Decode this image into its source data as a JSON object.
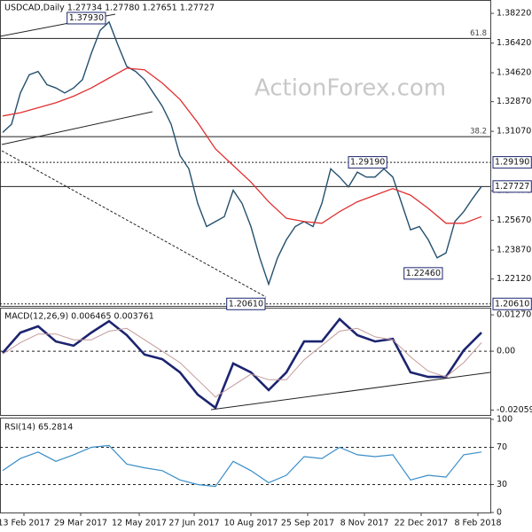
{
  "chart_data": [
    {
      "type": "line",
      "title": "USDCAD,Daily  1.27734 1.27780 1.27651 1.27727",
      "watermark": "ActionForex.com",
      "xlim": [
        0,
        275
      ],
      "ylim": [
        1.2049,
        1.3903
      ],
      "yticks": [
        {
          "value": 1.3822,
          "label": "1.38220"
        },
        {
          "value": 1.3642,
          "label": "1.36420"
        },
        {
          "value": 1.3462,
          "label": "1.34620"
        },
        {
          "value": 1.3287,
          "label": "1.32870"
        },
        {
          "value": 1.3107,
          "label": "1.31070"
        },
        {
          "value": 1.2747,
          "label": "1.27470"
        },
        {
          "value": 1.2567,
          "label": "1.25670"
        },
        {
          "value": 1.2387,
          "label": "1.23870"
        },
        {
          "value": 1.2212,
          "label": "1.22120"
        }
      ],
      "series": [
        {
          "name": "Price",
          "color": "#24506e",
          "width": 1.4,
          "x": [
            0,
            5,
            10,
            15,
            20,
            25,
            30,
            35,
            40,
            45,
            50,
            55,
            60,
            65,
            70,
            75,
            80,
            85,
            90,
            95,
            100,
            105,
            110,
            115,
            120,
            125,
            130,
            135,
            140,
            145,
            150,
            155,
            160,
            165,
            170,
            175,
            180,
            185,
            190,
            195,
            200,
            205,
            210,
            215,
            220,
            225,
            230,
            235,
            240,
            245,
            250,
            255,
            260,
            265,
            270
          ],
          "values": [
            1.31,
            1.315,
            1.334,
            1.345,
            1.347,
            1.339,
            1.337,
            1.334,
            1.337,
            1.342,
            1.358,
            1.372,
            1.377,
            1.363,
            1.35,
            1.347,
            1.342,
            1.334,
            1.326,
            1.315,
            1.296,
            1.288,
            1.267,
            1.253,
            1.256,
            1.259,
            1.275,
            1.267,
            1.253,
            1.234,
            1.218,
            1.234,
            1.245,
            1.253,
            1.256,
            1.253,
            1.267,
            1.288,
            1.283,
            1.277,
            1.286,
            1.283,
            1.283,
            1.288,
            1.283,
            1.267,
            1.251,
            1.253,
            1.245,
            1.234,
            1.237,
            1.256,
            1.262,
            1.27,
            1.2773
          ]
        },
        {
          "name": "MA",
          "color": "#e03030",
          "width": 1.3,
          "x": [
            0,
            10,
            20,
            30,
            40,
            50,
            60,
            70,
            80,
            90,
            100,
            110,
            120,
            130,
            140,
            150,
            160,
            170,
            180,
            190,
            200,
            210,
            220,
            230,
            240,
            250,
            260,
            270
          ],
          "values": [
            1.32,
            1.322,
            1.325,
            1.328,
            1.332,
            1.337,
            1.343,
            1.349,
            1.348,
            1.34,
            1.33,
            1.316,
            1.3,
            1.29,
            1.28,
            1.268,
            1.258,
            1.256,
            1.255,
            1.262,
            1.268,
            1.272,
            1.276,
            1.272,
            1.264,
            1.255,
            1.255,
            1.259
          ]
        }
      ],
      "levels": [
        {
          "value": 1.367,
          "name": "61.8",
          "line": "solid"
        },
        {
          "value": 1.3075,
          "name": "38.2",
          "line": "solid"
        },
        {
          "value": 1.2919,
          "label": "1.29190",
          "line": "dotted"
        },
        {
          "value": 1.27727,
          "label": "1.27727",
          "line": "solid"
        },
        {
          "value": 1.2061,
          "label": "1.20610",
          "line": "dotted"
        }
      ],
      "callouts": [
        {
          "label": "1.37930",
          "value": 1.3793,
          "x": 57,
          "anchor": "end"
        },
        {
          "label": "1.29190",
          "value": 1.2919,
          "x": 196,
          "anchor": "start"
        },
        {
          "label": "1.22460",
          "value": 1.2246,
          "x": 247,
          "anchor": "end"
        },
        {
          "label": "1.20610",
          "value": 1.2061,
          "x": 147,
          "anchor": "end"
        }
      ]
    },
    {
      "type": "line",
      "title": "MACD(12,26,9) 0.006465 0.003761",
      "xlim": [
        0,
        275
      ],
      "ylim": [
        -0.0223,
        0.0149
      ],
      "yticks": [
        0.012707,
        {
          "value": 0,
          "label": "0.00"
        },
        -0.020599
      ],
      "levels": [
        {
          "value": 0,
          "line": "dashed"
        }
      ],
      "series": [
        {
          "name": "MACD",
          "color": "#1c2470",
          "width": 2.6,
          "x": [
            0,
            10,
            20,
            30,
            40,
            50,
            60,
            70,
            80,
            90,
            100,
            110,
            120,
            130,
            140,
            150,
            160,
            170,
            180,
            190,
            200,
            210,
            220,
            230,
            240,
            250,
            260,
            270
          ],
          "values": [
            -0.0006,
            0.0065,
            0.0087,
            0.0034,
            0.0019,
            0.0065,
            0.0105,
            0.0056,
            -0.0012,
            -0.0028,
            -0.0074,
            -0.0152,
            -0.0198,
            -0.0043,
            -0.0074,
            -0.0136,
            -0.0074,
            0.0034,
            0.0034,
            0.0112,
            0.0056,
            0.0034,
            0.0043,
            -0.0074,
            -0.009,
            -0.009,
            0.0003,
            0.0065
          ]
        },
        {
          "name": "Signal",
          "color": "#c49a9a",
          "width": 1,
          "x": [
            0,
            10,
            20,
            30,
            40,
            50,
            60,
            70,
            80,
            90,
            100,
            110,
            120,
            130,
            140,
            150,
            160,
            170,
            180,
            190,
            200,
            210,
            220,
            230,
            240,
            250,
            260,
            270
          ],
          "values": [
            -0.001,
            0.003,
            0.006,
            0.006,
            0.004,
            0.004,
            0.007,
            0.008,
            0.004,
            0.0,
            -0.004,
            -0.01,
            -0.016,
            -0.012,
            -0.008,
            -0.01,
            -0.01,
            -0.003,
            0.002,
            0.007,
            0.008,
            0.005,
            0.004,
            -0.002,
            -0.007,
            -0.009,
            -0.004,
            0.003
          ]
        }
      ]
    },
    {
      "type": "line",
      "title": "RSI(14) 65.2814",
      "xlim": [
        0,
        275
      ],
      "ylim": [
        0,
        100
      ],
      "yticks": [
        100,
        70,
        30,
        0
      ],
      "levels": [
        {
          "value": 70,
          "line": "dashed"
        },
        {
          "value": 30,
          "line": "dashed"
        }
      ],
      "xticks": [
        {
          "value": 12,
          "label": "13 Feb 2017"
        },
        {
          "value": 44,
          "label": "29 Mar 2017"
        },
        {
          "value": 77,
          "label": "12 May 2017"
        },
        {
          "value": 108,
          "label": "27 Jun 2017"
        },
        {
          "value": 140,
          "label": "10 Aug 2017"
        },
        {
          "value": 172,
          "label": "25 Sep 2017"
        },
        {
          "value": 204,
          "label": "8 Nov 2017"
        },
        {
          "value": 236,
          "label": "22 Dec 2017"
        },
        {
          "value": 268,
          "label": "8 Feb 2018"
        }
      ],
      "series": [
        {
          "name": "RSI",
          "color": "#3a8ec8",
          "width": 1.2,
          "x": [
            0,
            10,
            20,
            30,
            40,
            50,
            60,
            70,
            80,
            90,
            100,
            110,
            120,
            130,
            140,
            150,
            160,
            170,
            180,
            190,
            200,
            210,
            220,
            230,
            240,
            250,
            260,
            270
          ],
          "values": [
            45,
            58,
            65,
            55,
            62,
            70,
            72,
            52,
            48,
            45,
            35,
            30,
            28,
            55,
            45,
            32,
            40,
            60,
            58,
            70,
            62,
            60,
            62,
            35,
            40,
            38,
            62,
            65
          ]
        }
      ]
    }
  ]
}
